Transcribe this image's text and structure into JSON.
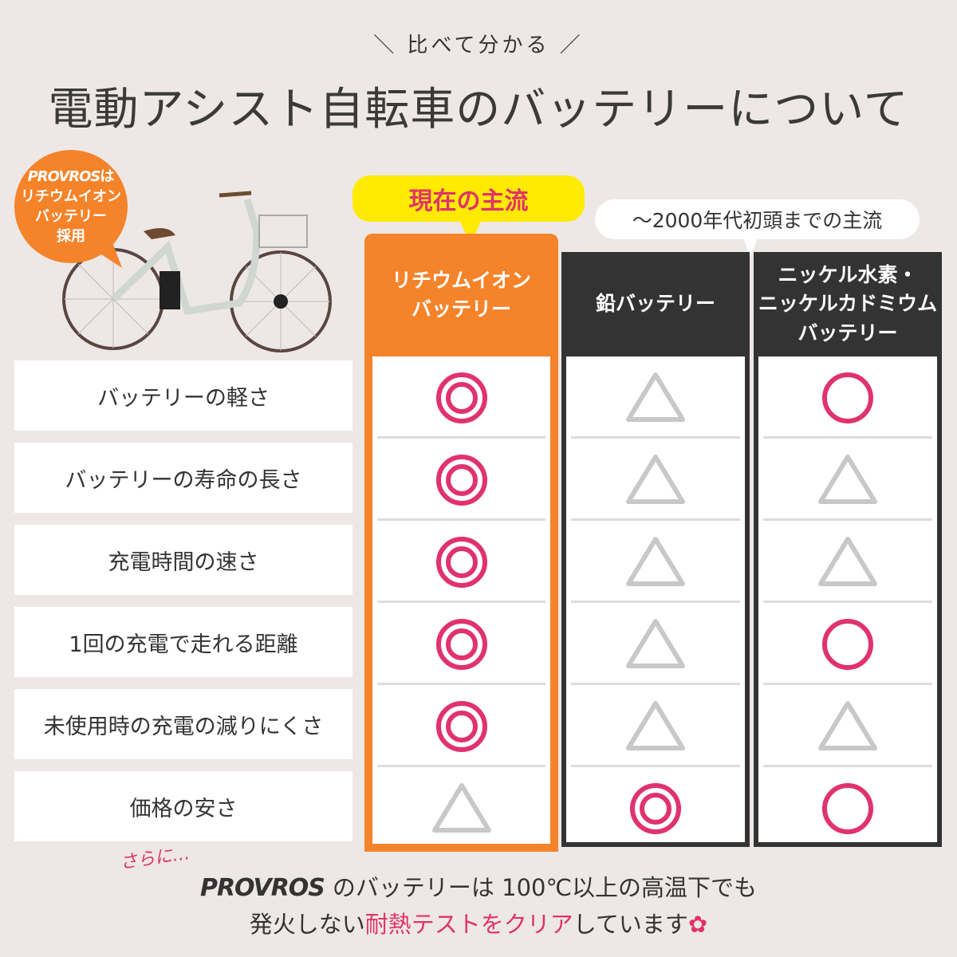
{
  "header": {
    "subtitle": "＼ 比べて分かる ／",
    "title": "電動アシスト自転車のバッテリーについて"
  },
  "badge": {
    "brand": "PROVROS",
    "lines": [
      "は",
      "リチウムイオン",
      "バッテリー",
      "採用"
    ]
  },
  "labels": {
    "mainstream_now": "現在の主流",
    "mainstream_past": "～2000年代初頭までの主流"
  },
  "colors": {
    "orange": "#f5832a",
    "dark": "#333333",
    "pink": "#e0336b",
    "yellow": "#ffea00",
    "gray_symbol": "#c8c8c8",
    "background": "#ede8e5"
  },
  "rows": [
    "バッテリーの軽さ",
    "バッテリーの寿命の長さ",
    "充電時間の速さ",
    "1回の充電で走れる距離",
    "未使用時の充電の減りにくさ",
    "価格の安さ"
  ],
  "columns": [
    {
      "header": [
        "リチウムイオン",
        "バッテリー"
      ],
      "values": [
        "double-circle",
        "double-circle",
        "double-circle",
        "double-circle",
        "double-circle",
        "triangle"
      ]
    },
    {
      "header": [
        "鉛バッテリー"
      ],
      "values": [
        "triangle",
        "triangle",
        "triangle",
        "triangle",
        "triangle",
        "double-circle"
      ]
    },
    {
      "header": [
        "ニッケル水素・",
        "ニッケルカドミウム",
        "バッテリー"
      ],
      "values": [
        "circle",
        "triangle",
        "triangle",
        "circle",
        "triangle",
        "circle"
      ]
    }
  ],
  "footer": {
    "aside": "さらに…",
    "brand": "PROVROS",
    "line1": "のバッテリーは 100℃以上の高温下でも",
    "line2_a": "発火しない",
    "line2_highlight": "耐熱テストをクリア",
    "line2_b": "しています"
  }
}
